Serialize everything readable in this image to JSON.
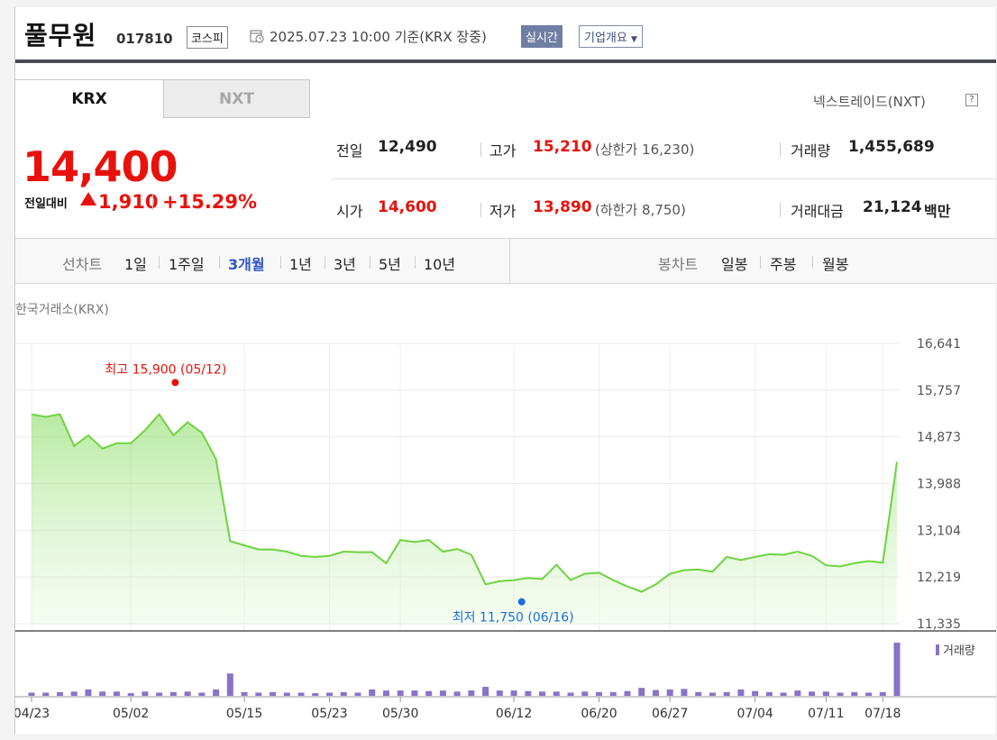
{
  "header": {
    "company_name": "풀무원",
    "ticker": "017810",
    "market": "코스피",
    "date_text": "2025.07.23 10:00 기준(KRX 장중)",
    "realtime_label": "실시간",
    "overview_label": "기업개요",
    "clock_icon": "clock-icon"
  },
  "tabs": {
    "krx": "KRX",
    "nxt": "NXT",
    "nxt_link": "넥스트레이드(NXT)",
    "help_icon": "help-icon"
  },
  "price": {
    "current": "14,400",
    "change_label": "전일대비",
    "change_value": "1,910",
    "change_pct": "+15.29%",
    "up_color": "#e8120c"
  },
  "stats": {
    "prev_close_label": "전일",
    "prev_close": "12,490",
    "open_label": "시가",
    "open": "14,600",
    "high_label": "고가",
    "high": "15,210",
    "upper_limit": "(상한가 16,230)",
    "low_label": "저가",
    "low": "13,890",
    "lower_limit": "(하한가 8,750)",
    "volume_label": "거래량",
    "volume": "1,455,689",
    "amount_label": "거래대금",
    "amount": "21,124",
    "amount_unit": "백만"
  },
  "period_bar": {
    "line_chart_label": "선차트",
    "periods": [
      "1일",
      "1주일",
      "3개월",
      "1년",
      "3년",
      "5년",
      "10년"
    ],
    "active_period": "3개월",
    "candle_chart_label": "봉차트",
    "candles": [
      "일봉",
      "주봉",
      "월봉"
    ]
  },
  "chart_source": "한국거래소(KRX)",
  "chart_data": {
    "type": "area",
    "y_ticks": [
      "16,641",
      "15,757",
      "14,873",
      "13,988",
      "13,104",
      "12,219",
      "11,335"
    ],
    "ylim": [
      11335,
      16641
    ],
    "x_ticks": [
      "04/23",
      "05/02",
      "05/15",
      "05/23",
      "05/30",
      "06/12",
      "06/20",
      "06/27",
      "07/04",
      "07/11",
      "07/18"
    ],
    "high_annotation": "최고 15,900 (05/12)",
    "low_annotation": "최저 11,750 (06/16)",
    "volume_legend": "거래량",
    "line_color": "#6fd33f",
    "volume_color": "#8a72c9",
    "prices": [
      15300,
      15250,
      15300,
      14700,
      14900,
      14650,
      14750,
      14750,
      15000,
      15300,
      14900,
      15150,
      14950,
      14450,
      12900,
      12820,
      12740,
      12740,
      12700,
      12620,
      12600,
      12620,
      12700,
      12690,
      12690,
      12480,
      12920,
      12880,
      12920,
      12700,
      12750,
      12640,
      12080,
      12140,
      12160,
      12200,
      12180,
      12450,
      12160,
      12280,
      12300,
      12160,
      12040,
      11940,
      12080,
      12280,
      12350,
      12360,
      12320,
      12600,
      12540,
      12600,
      12650,
      12640,
      12700,
      12620,
      12440,
      12420,
      12480,
      12520,
      12490,
      14400
    ],
    "volumes": [
      0.06,
      0.06,
      0.07,
      0.08,
      0.12,
      0.08,
      0.08,
      0.05,
      0.08,
      0.06,
      0.07,
      0.08,
      0.06,
      0.12,
      0.42,
      0.07,
      0.06,
      0.07,
      0.06,
      0.06,
      0.05,
      0.06,
      0.07,
      0.06,
      0.12,
      0.1,
      0.1,
      0.1,
      0.09,
      0.1,
      0.08,
      0.1,
      0.17,
      0.1,
      0.1,
      0.09,
      0.08,
      0.08,
      0.06,
      0.08,
      0.07,
      0.07,
      0.09,
      0.15,
      0.11,
      0.12,
      0.13,
      0.07,
      0.06,
      0.07,
      0.12,
      0.09,
      0.07,
      0.06,
      0.1,
      0.08,
      0.08,
      0.06,
      0.07,
      0.06,
      0.07,
      1.0
    ]
  }
}
